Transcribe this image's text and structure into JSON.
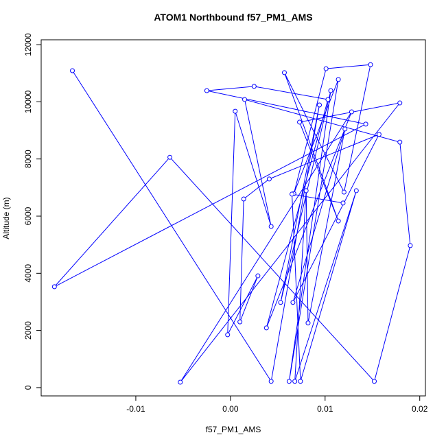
{
  "chart_data": {
    "type": "scatter-line",
    "title": "ATOM1 Northbound f57_PM1_AMS",
    "x_label": "f57_PM1_AMS",
    "y_label": "Altitude (m)",
    "color": "#0000ff",
    "xlim": [
      -0.02,
      0.0206
    ],
    "ylim": [
      -290,
      12170
    ],
    "xticks": [
      -0.01,
      {
        "value": 0,
        "label": "0.00"
      },
      0.01,
      0.02
    ],
    "yticks": [
      0,
      2000,
      4000,
      6000,
      8000,
      10000,
      12000
    ],
    "x": [
      -0.0167,
      0.0043,
      0.0094,
      0.0053,
      0.0106,
      0.0062,
      0.0114,
      0.0067,
      0.0101,
      0.0148,
      0.012,
      0.0057,
      0.0114,
      0.0073,
      0.0179,
      -0.0053,
      0.0128,
      0.0038,
      0.0103,
      0.0025,
      -0.0025,
      0.0143,
      -0.0186,
      -0.0064,
      0.0152,
      0.019,
      0.0179,
      0.0015,
      0.0043,
      0.0005,
      -0.0003,
      0.0029,
      0.001,
      0.0014,
      0.0041,
      0.0157,
      0.0066,
      0.0121,
      0.0082,
      0.008,
      0.0068,
      0.0133,
      0.0074,
      0.0065,
      0.0119
    ],
    "values": [
      11090,
      220,
      9890,
      2980,
      10390,
      220,
      10780,
      6790,
      11160,
      11300,
      6840,
      11020,
      5830,
      9290,
      9960,
      190,
      9650,
      2090,
      10080,
      10540,
      10390,
      9220,
      3530,
      8060,
      220,
      4970,
      8590,
      10080,
      5640,
      9670,
      1850,
      3910,
      2300,
      6600,
      7300,
      8860,
      2980,
      9050,
      2260,
      6890,
      220,
      6890,
      220,
      6770,
      6460
    ]
  }
}
